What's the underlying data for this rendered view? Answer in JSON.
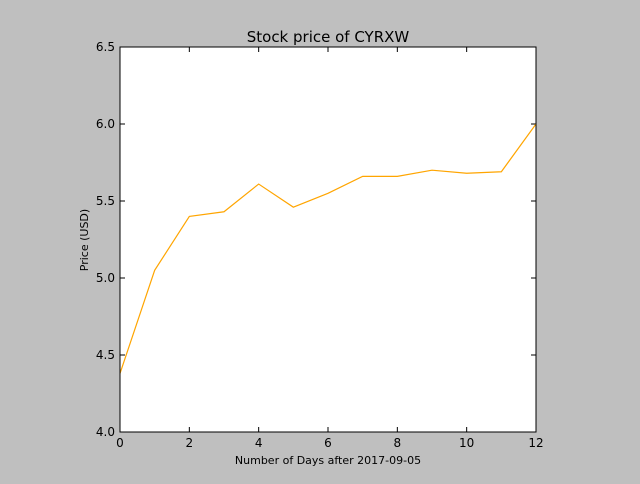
{
  "chart_data": {
    "type": "line",
    "title": "Stock price of CYRXW",
    "xlabel": "Number of Days after 2017-09-05",
    "ylabel": "Price (USD)",
    "xlim": [
      0,
      12
    ],
    "ylim": [
      4.0,
      6.5
    ],
    "x_ticks": [
      "0",
      "2",
      "4",
      "6",
      "8",
      "10",
      "12"
    ],
    "y_ticks": [
      "4.0",
      "4.5",
      "5.0",
      "5.5",
      "6.0",
      "6.5"
    ],
    "grid": false,
    "series": [
      {
        "color": "#ffa500",
        "x": [
          0,
          1,
          2,
          3,
          4,
          5,
          6,
          7,
          8,
          9,
          10,
          11,
          12
        ],
        "y": [
          4.38,
          5.05,
          5.4,
          5.43,
          5.61,
          5.46,
          5.55,
          5.66,
          5.66,
          5.7,
          5.68,
          5.69,
          6.0
        ]
      }
    ]
  },
  "colors": {
    "figure_background": "#bfbfbf",
    "plot_background": "#ffffff",
    "line": "#ffa500"
  }
}
